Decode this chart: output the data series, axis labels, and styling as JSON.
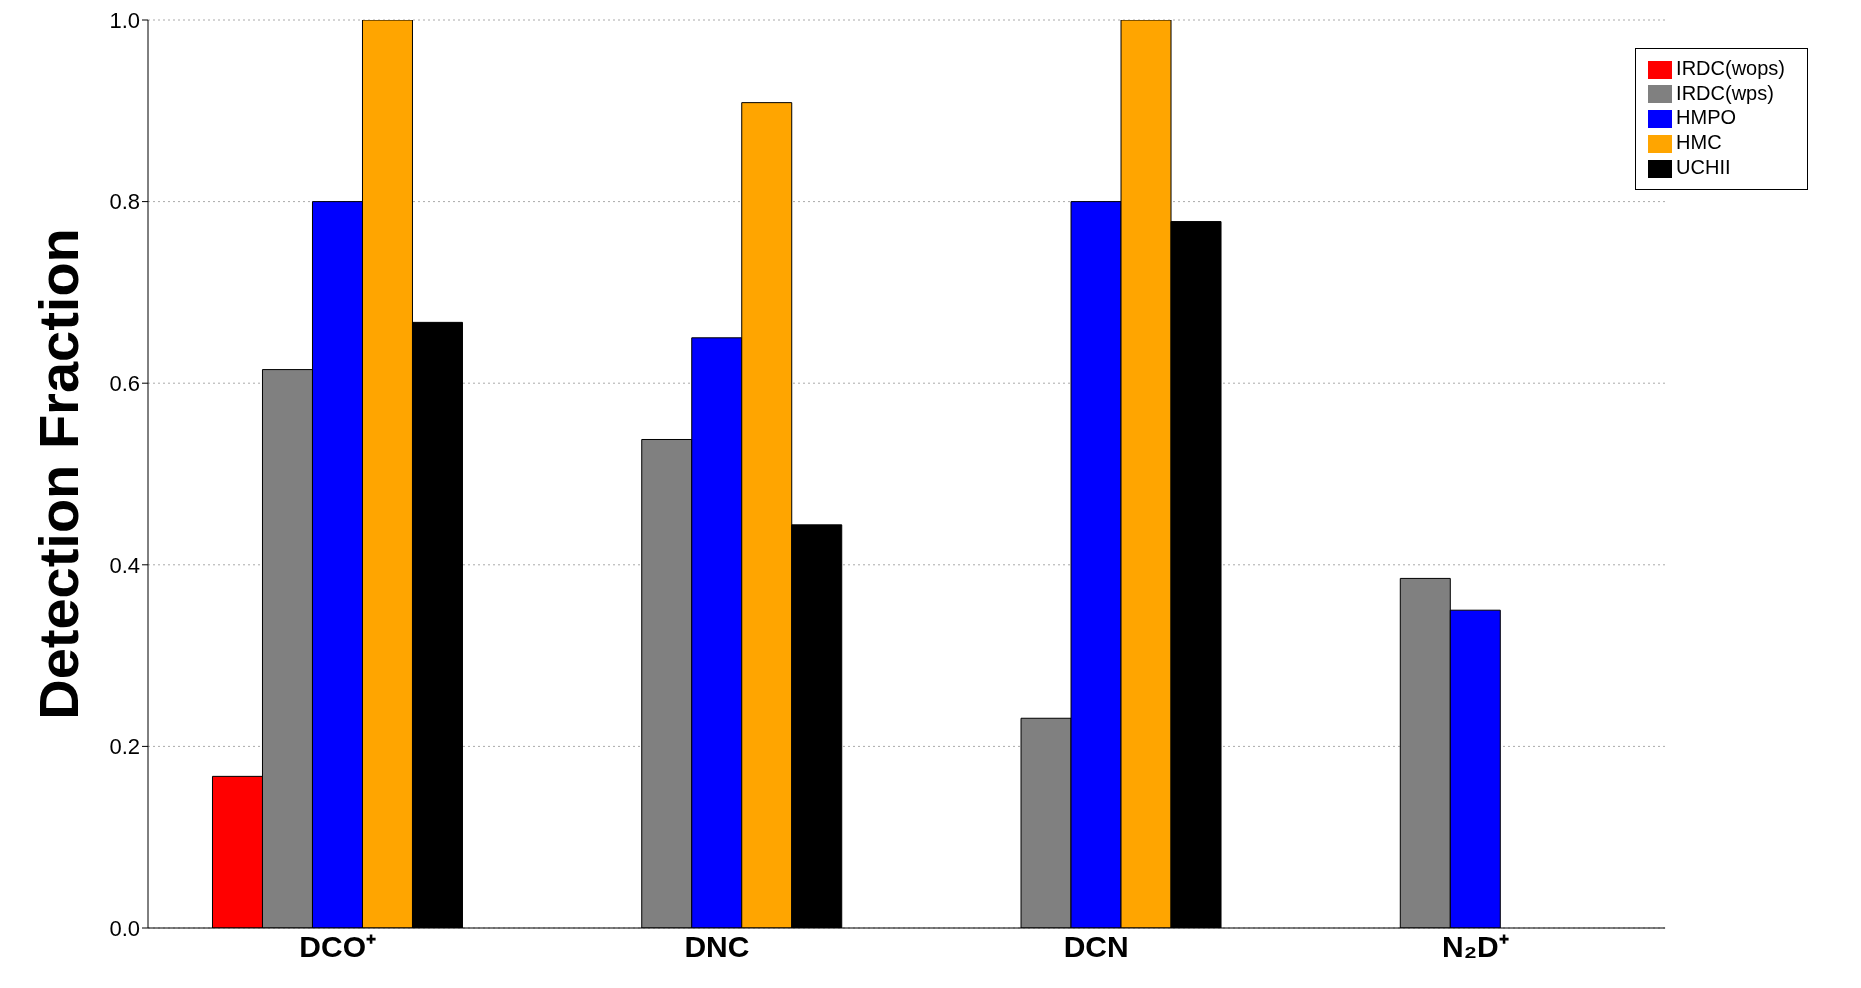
{
  "chart_data": {
    "type": "bar",
    "ylabel": "Detection Fraction",
    "categories": [
      "DCO⁺",
      "DNC",
      "DCN",
      "N₂D⁺"
    ],
    "series": [
      {
        "name": "IRDC(wops)",
        "color": "#ff0000",
        "values": [
          0.167,
          0,
          0,
          0
        ]
      },
      {
        "name": "IRDC(wps)",
        "color": "#808080",
        "values": [
          0.615,
          0.538,
          0.231,
          0.385
        ]
      },
      {
        "name": "HMPO",
        "color": "#0000ff",
        "values": [
          0.8,
          0.65,
          0.8,
          0.35
        ]
      },
      {
        "name": "HMC",
        "color": "#ffa500",
        "values": [
          1.0,
          0.909,
          1.0,
          0
        ]
      },
      {
        "name": "UCHII",
        "color": "#000000",
        "values": [
          0.667,
          0.444,
          0.778,
          0
        ]
      }
    ],
    "ylim": [
      0,
      1
    ],
    "yticks": [
      {
        "value": 0,
        "label": "0.0"
      },
      {
        "value": 0.2,
        "label": "0.2"
      },
      {
        "value": 0.4,
        "label": "0.4"
      },
      {
        "value": 0.6,
        "label": "0.6"
      },
      {
        "value": 0.8,
        "label": "0.8"
      },
      {
        "value": 1,
        "label": "1.0"
      }
    ],
    "grid": "y",
    "legend": "top right"
  }
}
